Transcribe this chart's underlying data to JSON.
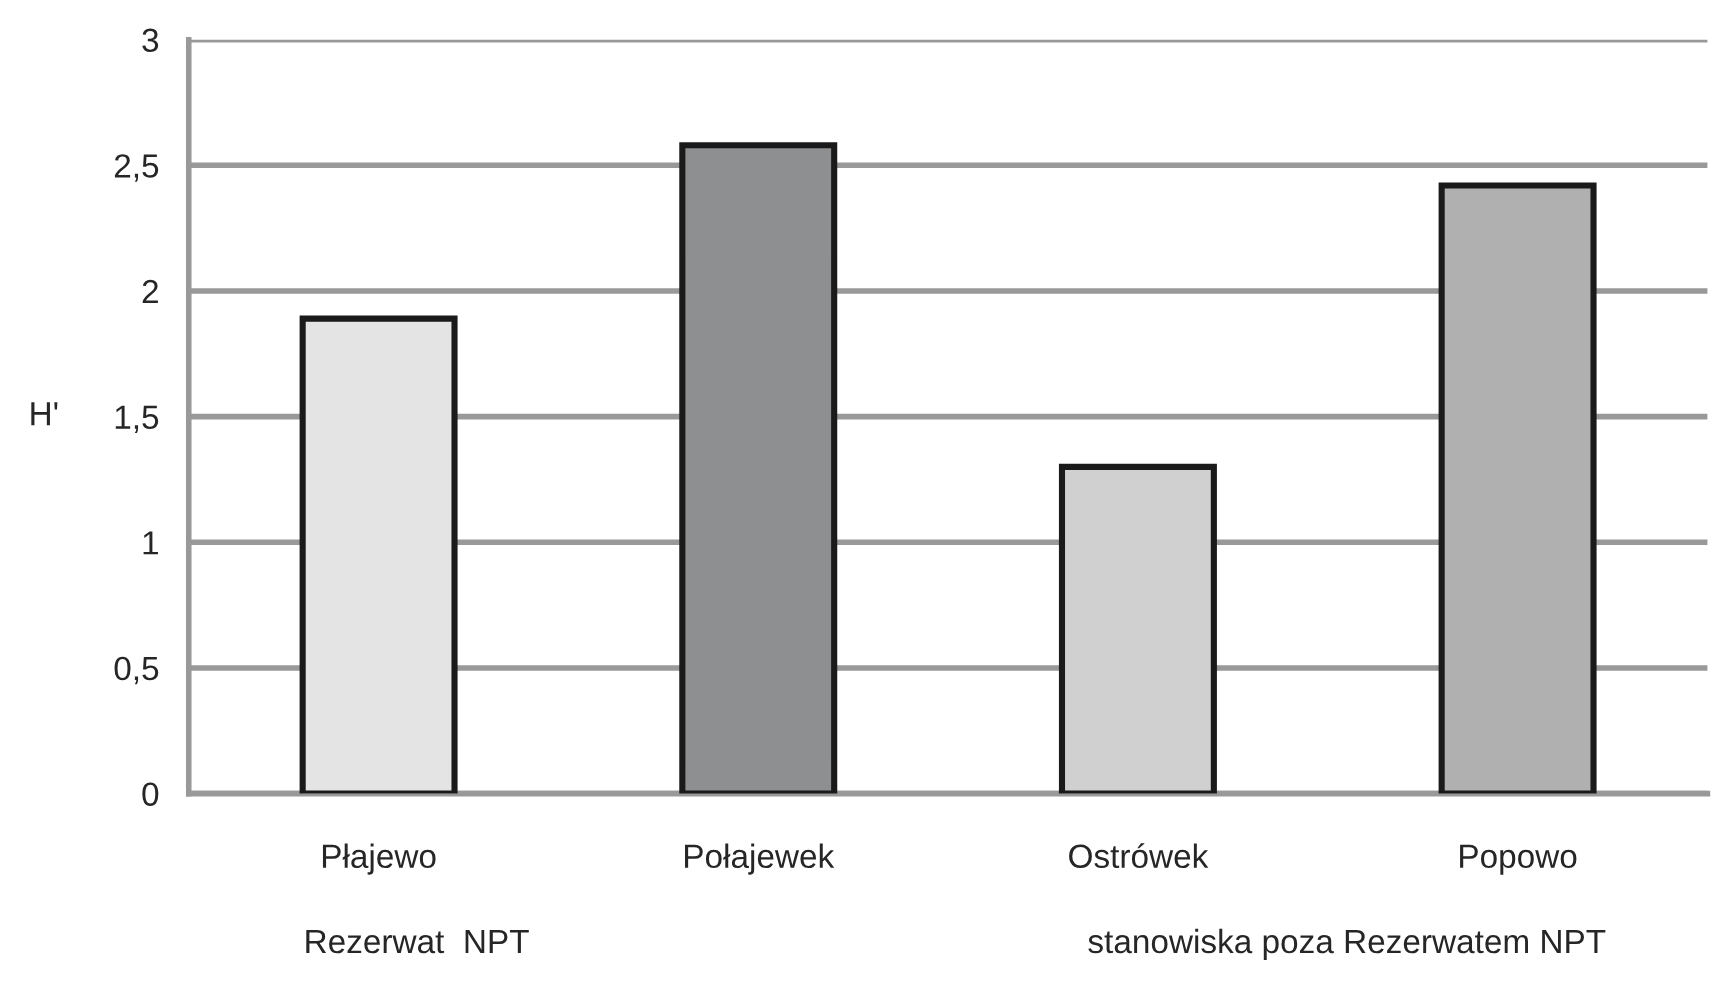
{
  "chart_data": {
    "type": "bar",
    "ylabel": "H'",
    "categories": [
      "Płajewo",
      "Połajewek",
      "Ostrówek",
      "Popowo"
    ],
    "values": [
      1.89,
      2.58,
      1.3,
      2.42
    ],
    "colors": [
      "#e4e4e4",
      "#8e8f91",
      "#d0d0d0",
      "#b0b0b0"
    ],
    "ylim": [
      0,
      3
    ],
    "yticks": [
      {
        "value": 0,
        "label": "0"
      },
      {
        "value": 0.5,
        "label": "0,5"
      },
      {
        "value": 1,
        "label": "1"
      },
      {
        "value": 1.5,
        "label": "1,5"
      },
      {
        "value": 2,
        "label": "2"
      },
      {
        "value": 2.5,
        "label": "2,5"
      },
      {
        "value": 3,
        "label": "3"
      }
    ],
    "grid": "y",
    "annotations": [
      "Rezerwat  NPT",
      "stanowiska poza Rezerwatem NPT"
    ]
  }
}
